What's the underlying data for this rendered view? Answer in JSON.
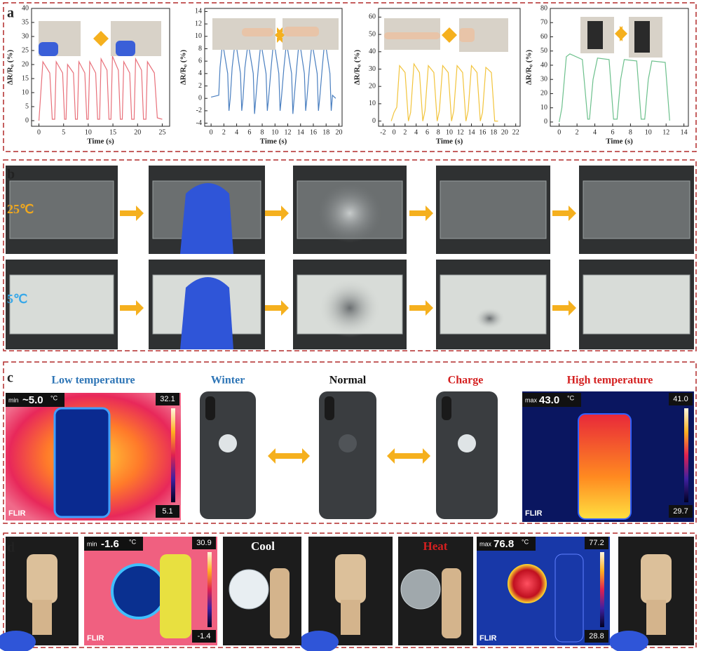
{
  "panels": {
    "a": {
      "label": "a"
    },
    "b": {
      "label": "b",
      "row_labels": [
        "25℃",
        "5℃"
      ]
    },
    "c": {
      "label": "c",
      "titles": [
        "Low temperature",
        "Winter",
        "Normal",
        "Charge",
        "High temperature"
      ],
      "thermal_left": {
        "mode": "min",
        "reading": "~5.0",
        "unit": "°C",
        "scale_max": "32.1",
        "scale_min": "5.1",
        "brand": "FLIR"
      },
      "thermal_right": {
        "mode": "max",
        "reading": "43.0",
        "unit": "°C",
        "scale_max": "41.0",
        "scale_min": "29.7",
        "brand": "FLIR"
      }
    },
    "d": {
      "label": "d",
      "captions": [
        "Cool",
        "Heat"
      ],
      "thermal_left": {
        "mode": "min",
        "reading": "-1.6",
        "unit": "°C",
        "scale_max": "30.9",
        "scale_min": "-1.4",
        "brand": "FLIR"
      },
      "thermal_right": {
        "mode": "max",
        "reading": "76.8",
        "unit": "°C",
        "scale_max": "77.2",
        "scale_min": "28.8",
        "brand": "FLIR"
      }
    }
  },
  "chart_data": [
    {
      "type": "line",
      "y_label": "ΔR/R₀ (%)",
      "x_label": "Time (s)",
      "color": "#e8707a",
      "xlim": [
        -1.5,
        26.5
      ],
      "xticks": [
        0,
        5,
        10,
        15,
        20,
        25
      ],
      "ylim": [
        -2,
        40
      ],
      "yticks": [
        0,
        5,
        10,
        15,
        20,
        25,
        30,
        35,
        40
      ],
      "x": [
        0,
        0.8,
        2.2,
        2.7,
        3.2,
        3.5,
        4.8,
        5.2,
        5.5,
        5.8,
        7.0,
        7.4,
        7.8,
        8.1,
        9.3,
        9.7,
        10.0,
        10.3,
        11.5,
        11.9,
        12.3,
        12.6,
        13.8,
        14.2,
        14.6,
        14.9,
        16.1,
        16.5,
        16.9,
        17.2,
        18.4,
        18.8,
        19.3,
        19.6,
        20.8,
        21.2,
        21.7,
        22.0,
        23.4,
        24.0,
        25.0
      ],
      "values": [
        0,
        21,
        17,
        0.5,
        0.5,
        21,
        17,
        0.5,
        0.5,
        20,
        17,
        0.5,
        0.5,
        21,
        17,
        0.5,
        0.5,
        21,
        17,
        0.5,
        0.5,
        22,
        18,
        0.5,
        0.5,
        23,
        18,
        0.5,
        0.5,
        21,
        17,
        0.5,
        0.5,
        22,
        18,
        0.5,
        0.5,
        21,
        17,
        1,
        0.5
      ]
    },
    {
      "type": "line",
      "y_label": "ΔR/R₀ (%)",
      "x_label": "Time (s)",
      "color": "#4a7fc0",
      "xlim": [
        -1,
        20.5
      ],
      "xticks": [
        0,
        2,
        4,
        6,
        8,
        10,
        12,
        14,
        16,
        18,
        20
      ],
      "ylim": [
        -4.5,
        14.5
      ],
      "yticks": [
        -4,
        -2,
        0,
        2,
        4,
        6,
        8,
        10,
        12,
        14
      ],
      "x": [
        0,
        1.2,
        1.4,
        1.8,
        2.6,
        2.8,
        3.0,
        3.3,
        3.8,
        4.6,
        4.8,
        5.0,
        5.3,
        5.8,
        6.6,
        6.8,
        7.0,
        7.4,
        7.8,
        8.6,
        8.8,
        9.0,
        9.4,
        9.8,
        10.6,
        10.8,
        11.0,
        11.4,
        11.8,
        12.6,
        12.8,
        13.0,
        13.4,
        13.8,
        14.6,
        14.8,
        15.0,
        15.4,
        15.8,
        16.6,
        16.8,
        17.0,
        17.4,
        17.8,
        18.6,
        18.8,
        19.0,
        19.5
      ],
      "values": [
        0.2,
        0.5,
        5,
        9,
        4,
        -2,
        0,
        5,
        9.5,
        4,
        -2,
        0,
        5,
        9,
        4,
        -2.5,
        0,
        5,
        9,
        4,
        -2,
        0,
        5,
        9.5,
        4,
        -2,
        0,
        5,
        9,
        4,
        -2.5,
        0,
        5,
        9.5,
        4,
        -2,
        0,
        5,
        9,
        4,
        -2,
        0,
        5,
        9.5,
        4,
        -2,
        0.5,
        0
      ]
    },
    {
      "type": "line",
      "y_label": "ΔR/R₀ (%)",
      "x_label": "Time (s)",
      "color": "#f2c43c",
      "xlim": [
        -2.8,
        22.8
      ],
      "xticks": [
        -2,
        0,
        2,
        4,
        6,
        8,
        10,
        12,
        14,
        16,
        18,
        20,
        22
      ],
      "ylim": [
        -3,
        65
      ],
      "yticks": [
        0,
        10,
        20,
        30,
        40,
        50,
        60
      ],
      "x": [
        -0.5,
        0,
        0.5,
        1.0,
        2.0,
        2.6,
        3.0,
        3.6,
        4.6,
        5.2,
        5.6,
        6.2,
        7.2,
        7.8,
        8.2,
        8.8,
        9.8,
        10.4,
        10.8,
        11.4,
        12.4,
        13.0,
        13.4,
        14.0,
        15.0,
        15.6,
        16.0,
        16.6,
        17.6,
        18.2,
        18.8
      ],
      "values": [
        0,
        5,
        8,
        32,
        28,
        0,
        5,
        33,
        28,
        0,
        6,
        32,
        28,
        0,
        6,
        32,
        28,
        0,
        6,
        32,
        28,
        0,
        6,
        32,
        28,
        0,
        5,
        31,
        28,
        0,
        0
      ]
    },
    {
      "type": "line",
      "y_label": "ΔR/R₀ (%)",
      "x_label": "Time (s)",
      "color": "#6cc08c",
      "xlim": [
        -1,
        14.5
      ],
      "xticks": [
        0,
        2,
        4,
        6,
        8,
        10,
        12,
        14
      ],
      "ylim": [
        -3,
        80
      ],
      "yticks": [
        0,
        10,
        20,
        30,
        40,
        50,
        60,
        70,
        80
      ],
      "x": [
        0,
        0.3,
        0.8,
        1.2,
        2.6,
        3.2,
        3.4,
        3.8,
        4.3,
        5.6,
        6.1,
        6.5,
        6.9,
        7.3,
        8.7,
        9.2,
        9.6,
        10.0,
        10.4,
        11.9,
        12.4
      ],
      "values": [
        0,
        10,
        46,
        48,
        44,
        2,
        2,
        30,
        45,
        44,
        2,
        2,
        30,
        44,
        43,
        2,
        2,
        30,
        43,
        42,
        1
      ]
    }
  ]
}
